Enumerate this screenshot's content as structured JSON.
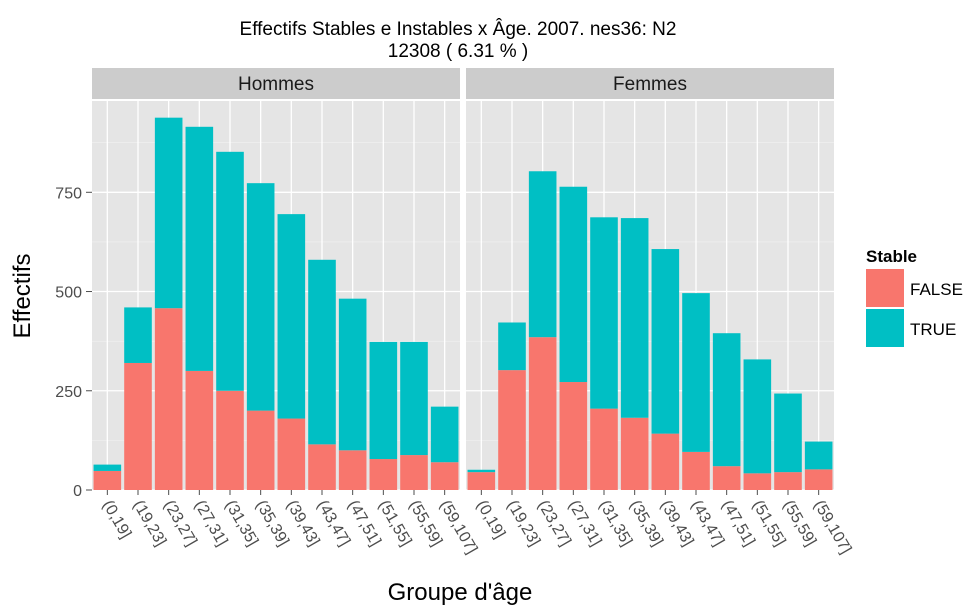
{
  "chart_data": {
    "type": "bar",
    "stacked": true,
    "title": "Effectifs Stables e Instables x Âge. 2007. nes36:  N2",
    "subtitle": "12308 ( 6.31 % )",
    "xlabel": "Groupe d'âge",
    "ylabel": "Effectifs",
    "ylim": [
      0,
      980
    ],
    "yticks": [
      0,
      250,
      500,
      750
    ],
    "ytick_labels": [
      "0",
      "250",
      "500",
      "750"
    ],
    "grid": true,
    "categories": [
      "(0,19]",
      "(19,23]",
      "(23,27]",
      "(27,31]",
      "(31,35]",
      "(35,39]",
      "(39,43]",
      "(43,47]",
      "(47,51]",
      "(51,55]",
      "(55,59]",
      "(59,107]"
    ],
    "legend": {
      "title": "Stable",
      "position": "right",
      "entries": [
        {
          "label": "FALSE",
          "color": "#F8766D"
        },
        {
          "label": "TRUE",
          "color": "#00BFC4"
        }
      ]
    },
    "panels": [
      {
        "label": "Hommes",
        "series": [
          {
            "name": "FALSE",
            "color": "#F8766D",
            "values": [
              48,
              320,
              458,
              300,
              250,
              200,
              180,
              115,
              100,
              78,
              88,
              70
            ]
          },
          {
            "name": "TRUE",
            "color": "#00BFC4",
            "values": [
              16,
              140,
              480,
              615,
              602,
              573,
              515,
              465,
              382,
              295,
              285,
              140
            ]
          }
        ]
      },
      {
        "label": "Femmes",
        "series": [
          {
            "name": "FALSE",
            "color": "#F8766D",
            "values": [
              45,
              302,
              385,
              272,
              205,
              182,
              142,
              96,
              60,
              42,
              45,
              52
            ]
          },
          {
            "name": "TRUE",
            "color": "#00BFC4",
            "values": [
              6,
              120,
              418,
              492,
              482,
              503,
              465,
              400,
              335,
              287,
              198,
              70
            ]
          }
        ]
      }
    ]
  }
}
